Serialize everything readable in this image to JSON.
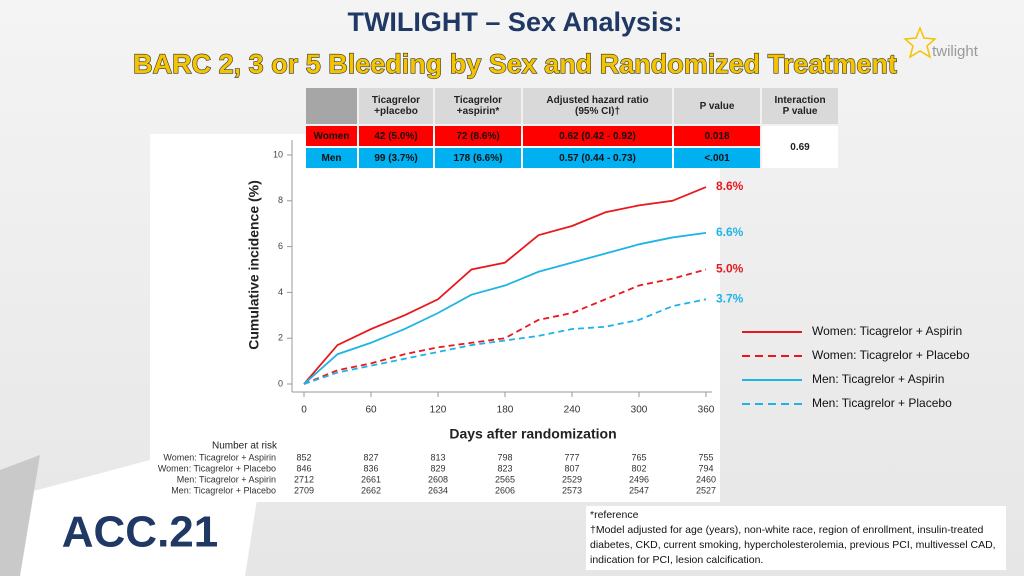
{
  "header": {
    "title": "TWILIGHT – Sex Analysis:",
    "subtitle": "BARC 2, 3 or 5 Bleeding by Sex and Randomized Treatment",
    "logo": "twilight"
  },
  "table": {
    "headers": [
      [
        "Ticagrelor",
        "+placebo"
      ],
      [
        "Ticagrelor",
        "+aspirin*"
      ],
      [
        "Adjusted hazard ratio",
        "(95% CI)†"
      ],
      [
        "P value"
      ],
      [
        "Interaction",
        "P value"
      ]
    ],
    "rows": [
      [
        "Women",
        "42 (5.0%)",
        "72 (8.6%)",
        "0.62 (0.42 - 0.92)",
        "0.018"
      ],
      [
        "Men",
        "99 (3.7%)",
        "178 (6.6%)",
        "0.57 (0.44 - 0.73)",
        "<.001"
      ]
    ],
    "interaction": "0.69"
  },
  "chart_data": {
    "type": "line",
    "x_label": "Days after randomization",
    "y_label": "Cumulative incidence (%)",
    "x": [
      0,
      30,
      60,
      90,
      120,
      150,
      180,
      210,
      240,
      270,
      300,
      330,
      360
    ],
    "xlim": [
      0,
      360
    ],
    "xticks": [
      0,
      60,
      120,
      180,
      240,
      300,
      360
    ],
    "ylim": [
      0,
      10
    ],
    "yticks": [
      0,
      2,
      4,
      6,
      8,
      10
    ],
    "series": [
      {
        "name": "Women: Ticagrelor + Aspirin",
        "color": "#e8181e",
        "style": "solid",
        "end_label": "8.6%",
        "values": [
          0,
          1.7,
          2.4,
          3.0,
          3.7,
          5.0,
          5.3,
          6.5,
          6.9,
          7.5,
          7.8,
          8.0,
          8.6
        ]
      },
      {
        "name": "Women: Ticagrelor + Placebo",
        "color": "#e8181e",
        "style": "dashed",
        "end_label": "5.0%",
        "values": [
          0,
          0.6,
          0.9,
          1.3,
          1.6,
          1.8,
          2.0,
          2.8,
          3.1,
          3.7,
          4.3,
          4.6,
          5.0
        ]
      },
      {
        "name": "Men: Ticagrelor + Aspirin",
        "color": "#1fb4e6",
        "style": "solid",
        "end_label": "6.6%",
        "values": [
          0,
          1.3,
          1.8,
          2.4,
          3.1,
          3.9,
          4.3,
          4.9,
          5.3,
          5.7,
          6.1,
          6.4,
          6.6
        ]
      },
      {
        "name": "Men: Ticagrelor + Placebo",
        "color": "#1fb4e6",
        "style": "dashed",
        "end_label": "3.7%",
        "values": [
          0,
          0.5,
          0.8,
          1.1,
          1.4,
          1.7,
          1.9,
          2.1,
          2.4,
          2.5,
          2.8,
          3.4,
          3.7
        ]
      }
    ],
    "risk_table": {
      "title": "Number at risk",
      "rows": [
        {
          "name": "Women: Ticagrelor + Aspirin",
          "values": [
            852,
            827,
            813,
            798,
            777,
            765,
            755
          ]
        },
        {
          "name": "Women: Ticagrelor + Placebo",
          "values": [
            846,
            836,
            829,
            823,
            807,
            802,
            794
          ]
        },
        {
          "name": "Men: Ticagrelor + Aspirin",
          "values": [
            2712,
            2661,
            2608,
            2565,
            2529,
            2496,
            2460
          ]
        },
        {
          "name": "Men: Ticagrelor + Placebo",
          "values": [
            2709,
            2662,
            2634,
            2606,
            2573,
            2547,
            2527
          ]
        }
      ]
    }
  },
  "footer": {
    "logo": "ACC.21",
    "footnotes": [
      "*reference",
      "†Model adjusted for age (years), non-white race, region of enrollment, insulin-treated diabetes, CKD, current smoking, hypercholesterolemia, previous PCI, multivessel CAD, indication for PCI, lesion calcification."
    ]
  }
}
